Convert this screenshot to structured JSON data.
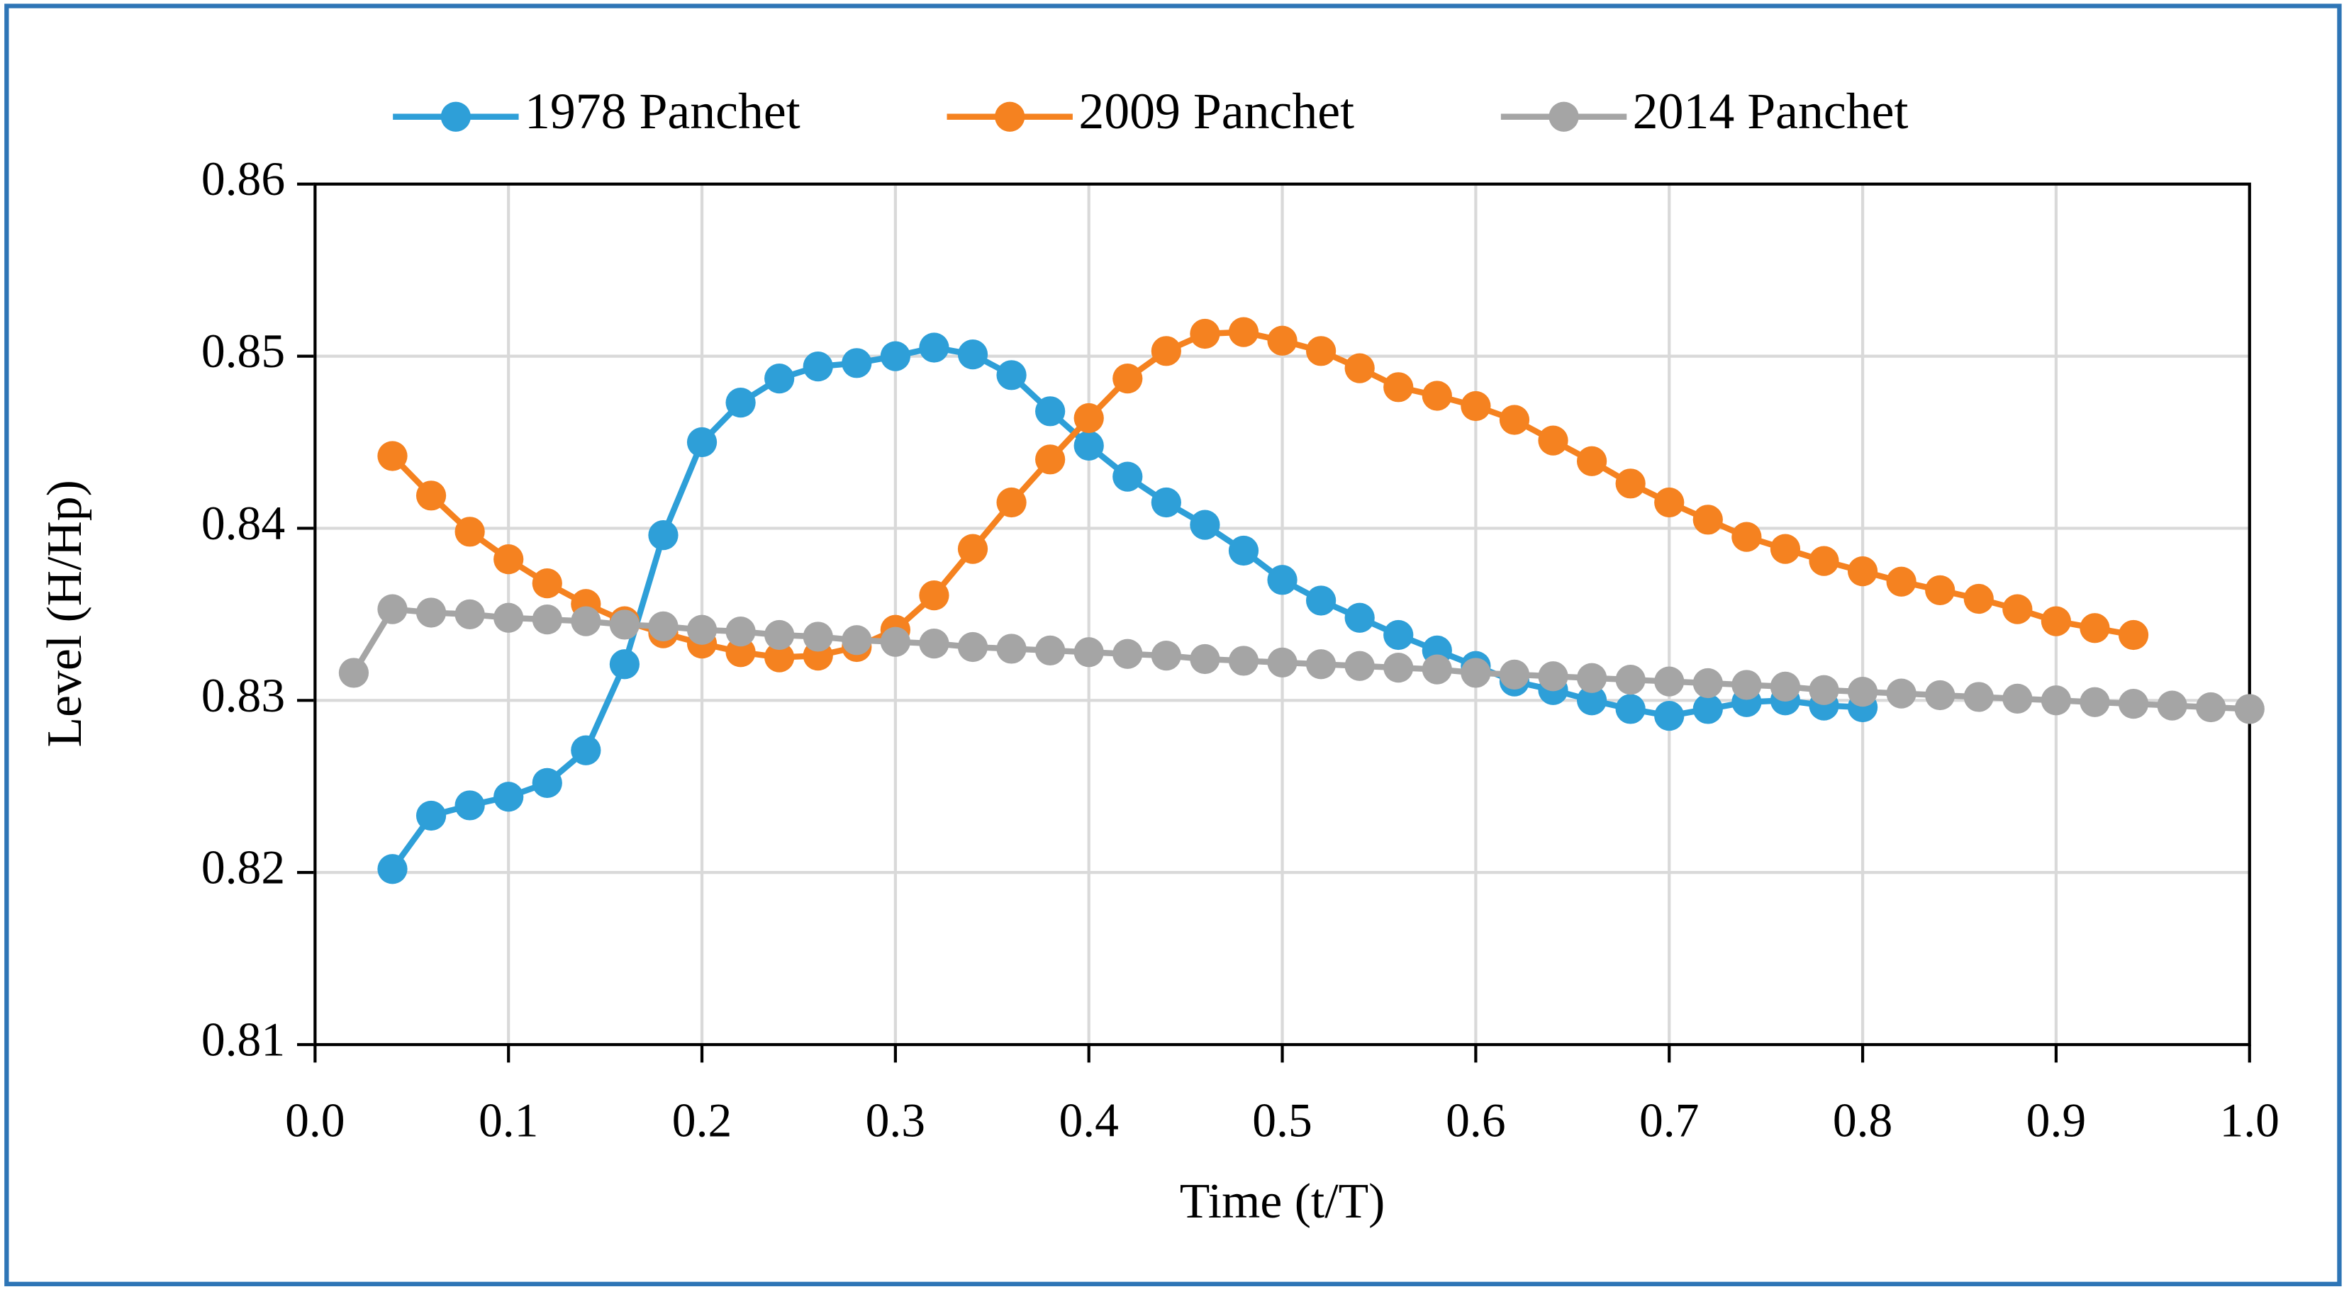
{
  "chart_data": {
    "type": "line",
    "xlabel": "Time (t/T)",
    "ylabel": "Level (H/Hp)",
    "xlim": [
      0,
      1
    ],
    "ylim": [
      0.81,
      0.86
    ],
    "xticks": [
      {
        "value": 0,
        "label": "0.0"
      },
      0.1,
      0.2,
      0.3,
      0.4,
      0.5,
      0.6,
      0.7,
      0.8,
      0.9,
      {
        "value": 1,
        "label": "1.0"
      }
    ],
    "yticks": [
      0.81,
      0.82,
      0.83,
      0.84,
      0.85,
      0.86
    ],
    "grid": true,
    "legend": "top",
    "series": [
      {
        "name": "1978 Panchet",
        "color": "#2e9fd8",
        "x": [
          0.04,
          0.06,
          0.08,
          0.1,
          0.12,
          0.14,
          0.16,
          0.18,
          0.2,
          0.22,
          0.24,
          0.26,
          0.28,
          0.3,
          0.32,
          0.34,
          0.36,
          0.38,
          0.4,
          0.42,
          0.44,
          0.46,
          0.48,
          0.5,
          0.52,
          0.54,
          0.56,
          0.58,
          0.6,
          0.62,
          0.64,
          0.66,
          0.68,
          0.7,
          0.72,
          0.74,
          0.76,
          0.78,
          0.8
        ],
        "values": [
          0.8202,
          0.8233,
          0.8239,
          0.8244,
          0.8252,
          0.8271,
          0.8321,
          0.8396,
          0.845,
          0.8473,
          0.8487,
          0.8494,
          0.8496,
          0.85,
          0.8505,
          0.8501,
          0.8489,
          0.8468,
          0.8448,
          0.843,
          0.8415,
          0.8402,
          0.8387,
          0.837,
          0.8358,
          0.8348,
          0.8338,
          0.8329,
          0.832,
          0.8311,
          0.8306,
          0.83,
          0.8295,
          0.8291,
          0.8295,
          0.8299,
          0.83,
          0.8297,
          0.8296
        ]
      },
      {
        "name": "2009 Panchet",
        "color": "#f58220",
        "x": [
          0.04,
          0.06,
          0.08,
          0.1,
          0.12,
          0.14,
          0.16,
          0.18,
          0.2,
          0.22,
          0.24,
          0.26,
          0.28,
          0.3,
          0.32,
          0.34,
          0.36,
          0.38,
          0.4,
          0.42,
          0.44,
          0.46,
          0.48,
          0.5,
          0.52,
          0.54,
          0.56,
          0.58,
          0.6,
          0.62,
          0.64,
          0.66,
          0.68,
          0.7,
          0.72,
          0.74,
          0.76,
          0.78,
          0.8,
          0.82,
          0.84,
          0.86,
          0.88,
          0.9,
          0.92,
          0.94
        ],
        "values": [
          0.8442,
          0.8419,
          0.8398,
          0.8382,
          0.8368,
          0.8356,
          0.8346,
          0.8339,
          0.8333,
          0.8328,
          0.8325,
          0.8326,
          0.8331,
          0.8341,
          0.8361,
          0.8388,
          0.8415,
          0.844,
          0.8464,
          0.8487,
          0.8503,
          0.8513,
          0.8514,
          0.8509,
          0.8503,
          0.8493,
          0.8482,
          0.8477,
          0.8471,
          0.8463,
          0.8451,
          0.8439,
          0.8426,
          0.8415,
          0.8405,
          0.8395,
          0.8388,
          0.8381,
          0.8375,
          0.8369,
          0.8364,
          0.8359,
          0.8353,
          0.8346,
          0.8342,
          0.8338
        ]
      },
      {
        "name": "2014 Panchet",
        "color": "#a5a5a5",
        "x": [
          0.02,
          0.04,
          0.06,
          0.08,
          0.1,
          0.12,
          0.14,
          0.16,
          0.18,
          0.2,
          0.22,
          0.24,
          0.26,
          0.28,
          0.3,
          0.32,
          0.34,
          0.36,
          0.38,
          0.4,
          0.42,
          0.44,
          0.46,
          0.48,
          0.5,
          0.52,
          0.54,
          0.56,
          0.58,
          0.6,
          0.62,
          0.64,
          0.66,
          0.68,
          0.7,
          0.72,
          0.74,
          0.76,
          0.78,
          0.8,
          0.82,
          0.84,
          0.86,
          0.88,
          0.9,
          0.92,
          0.94,
          0.96,
          0.98,
          1.0
        ],
        "values": [
          0.8316,
          0.8353,
          0.8351,
          0.835,
          0.8348,
          0.8347,
          0.8346,
          0.8344,
          0.8343,
          0.8341,
          0.834,
          0.8338,
          0.8337,
          0.8335,
          0.8334,
          0.8333,
          0.8331,
          0.833,
          0.8329,
          0.8328,
          0.8327,
          0.8326,
          0.8324,
          0.8323,
          0.8322,
          0.8321,
          0.832,
          0.8319,
          0.8318,
          0.8316,
          0.8315,
          0.8314,
          0.8313,
          0.8312,
          0.8311,
          0.831,
          0.8309,
          0.8308,
          0.8306,
          0.8305,
          0.8304,
          0.8303,
          0.8302,
          0.8301,
          0.83,
          0.8299,
          0.8298,
          0.8297,
          0.8296,
          0.8295
        ]
      }
    ]
  }
}
